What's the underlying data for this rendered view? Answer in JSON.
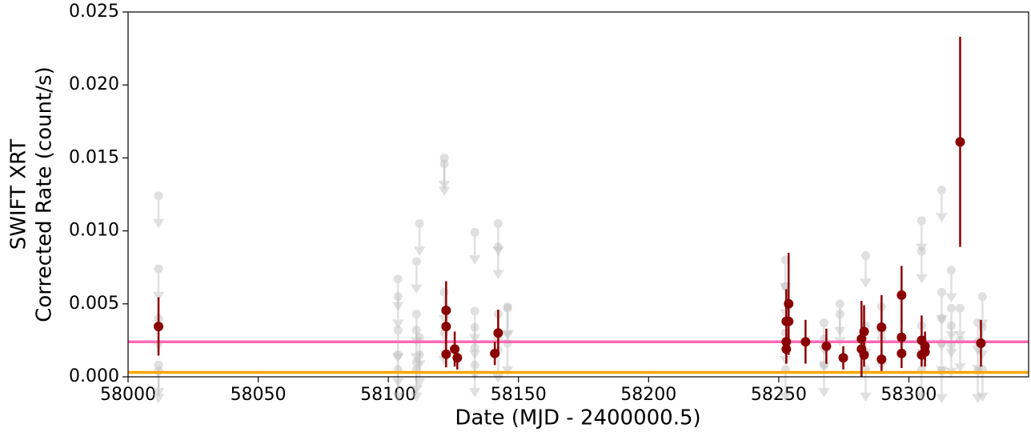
{
  "chart_data": {
    "type": "scatter",
    "xlabel": "Date (MJD - 2400000.5)",
    "ylabel": [
      "SWIFT XRT",
      "Corrected Rate (count/s)"
    ],
    "xlim": [
      58000,
      58346
    ],
    "ylim": [
      0,
      0.025
    ],
    "xticks": [
      58000,
      58050,
      58100,
      58150,
      58200,
      58250,
      58300
    ],
    "yticks": [
      {
        "value": 0,
        "label": "0.000"
      },
      0.005,
      {
        "value": 0.01,
        "label": "0.010"
      },
      0.015,
      {
        "value": 0.02,
        "label": "0.020"
      },
      0.025
    ],
    "detections": {
      "color": "#8b0000",
      "x": [
        58011.7,
        58122.2,
        58122.2,
        58122.2,
        58125.5,
        58126.5,
        58140.9,
        58142.2,
        58252.9,
        58252.9,
        58252.9,
        58253.8,
        58253.8,
        58260.3,
        58268.3,
        58274.8,
        58281.8,
        58281.8,
        58282.8,
        58282.8,
        58289.5,
        58289.5,
        58297.2,
        58297.2,
        58297.2,
        58304.9,
        58304.9,
        58306.2,
        58306.2,
        58319.7,
        58327.7
      ],
      "values": [
        0.00345,
        0.00455,
        0.00345,
        0.00155,
        0.0019,
        0.0013,
        0.0016,
        0.003,
        0.0038,
        0.0024,
        0.0019,
        0.005,
        0.0038,
        0.0024,
        0.0021,
        0.0013,
        0.0019,
        0.0026,
        0.0031,
        0.0015,
        0.0034,
        0.0012,
        0.0056,
        0.0027,
        0.0016,
        0.0025,
        0.0015,
        0.0021,
        0.0017,
        0.0161,
        0.0023
      ],
      "errors": [
        0.002,
        0.002,
        0.0012,
        0.0009,
        0.0012,
        0.0008,
        0.0008,
        0.0016,
        0.0022,
        0.001,
        0.001,
        0.0035,
        0.0015,
        0.0015,
        0.0012,
        0.0008,
        0.0012,
        0.0026,
        0.0018,
        0.0008,
        0.0022,
        0.0008,
        0.002,
        0.0012,
        0.001,
        0.0017,
        0.0008,
        0.001,
        0.001,
        0.0072,
        0.0016
      ]
    },
    "upper_limits": {
      "color": "#bbbbbb",
      "x": [
        58011.7,
        58011.7,
        58011.7,
        58011.7,
        58011.7,
        58103.7,
        58103.7,
        58103.7,
        58103.7,
        58103.7,
        58110.8,
        58110.8,
        58110.8,
        58110.8,
        58110.8,
        58112.0,
        58112.0,
        58112.0,
        58121.5,
        58121.5,
        58121.5,
        58121.5,
        58133.2,
        58133.2,
        58133.2,
        58133.2,
        58133.2,
        58142.2,
        58142.2,
        58142.2,
        58142.2,
        58145.8,
        58145.8,
        58145.8,
        58252.6,
        58252.6,
        58252.6,
        58252.6,
        58267.4,
        58267.4,
        58267.4,
        58273.5,
        58273.5,
        58283.4,
        58283.4,
        58283.4,
        58289.5,
        58289.5,
        58304.9,
        58304.9,
        58304.9,
        58304.9,
        58312.6,
        58312.6,
        58312.6,
        58312.6,
        58312.6,
        58316.3,
        58316.3,
        58316.3,
        58316.3,
        58319.7,
        58319.7,
        58326.5,
        58326.5,
        58326.5,
        58328.3,
        58328.3,
        58328.3
      ],
      "values": [
        0.0124,
        0.0074,
        0.004,
        0.0008,
        0.0004,
        0.0067,
        0.0055,
        0.0032,
        0.0015,
        0.0005,
        0.0079,
        0.0043,
        0.0032,
        0.001,
        0.0005,
        0.0105,
        0.0027,
        0.0015,
        0.0146,
        0.015,
        0.0058,
        0.003,
        0.0099,
        0.0045,
        0.0034,
        0.002,
        0.0008,
        0.0105,
        0.0089,
        0.0043,
        0.0018,
        0.0048,
        0.0047,
        0.0023,
        0.008,
        0.0062,
        0.003,
        0.0005,
        0.0037,
        0.0026,
        0.0008,
        0.005,
        0.0043,
        0.0083,
        0.0035,
        0.0005,
        0.0048,
        0.0026,
        0.0107,
        0.0086,
        0.0035,
        0.0005,
        0.0128,
        0.0058,
        0.004,
        0.0023,
        0.0004,
        0.0073,
        0.0047,
        0.0035,
        0.0022,
        0.0047,
        0.0025,
        0.0037,
        0.0024,
        0.0004,
        0.0055,
        0.0034,
        0.0005
      ]
    },
    "hlines": [
      {
        "value": 0.0024,
        "color": "#ff69b4"
      },
      {
        "value": 0.0003,
        "color": "#ffa500"
      }
    ]
  }
}
